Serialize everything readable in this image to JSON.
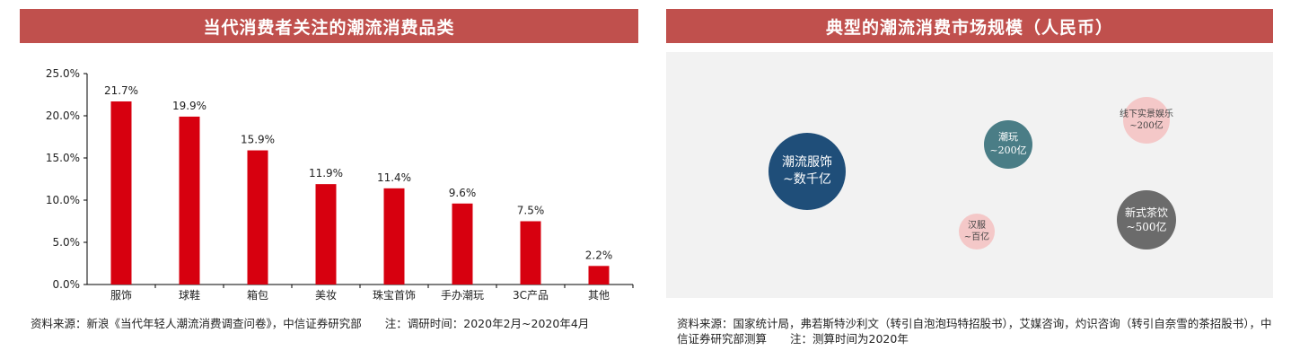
{
  "left_panel": {
    "title": "当代消费者关注的潮流消费品类",
    "source_text": "资料来源：新浪《当代年轻人潮流消费调查问卷》，中信证券研究部",
    "note_text": "注：调研时间：2020年2月~2020年4月"
  },
  "chart_data": {
    "type": "bar",
    "categories": [
      "服饰",
      "球鞋",
      "箱包",
      "美妆",
      "珠宝首饰",
      "手办潮玩",
      "3C产品",
      "其他"
    ],
    "values": [
      21.7,
      19.9,
      15.9,
      11.9,
      11.4,
      9.6,
      7.5,
      2.2
    ],
    "data_labels": [
      "21.7%",
      "19.9%",
      "15.9%",
      "11.9%",
      "11.4%",
      "9.6%",
      "7.5%",
      "2.2%"
    ],
    "y_ticks": [
      0,
      5,
      10,
      15,
      20,
      25
    ],
    "y_tick_labels": [
      "0.0%",
      "5.0%",
      "10.0%",
      "15.0%",
      "20.0%",
      "25.0%"
    ],
    "ylim": [
      0,
      25
    ],
    "grid": false,
    "bar_color": "#d7000f",
    "title": "当代消费者关注的潮流消费品类",
    "xlabel": "",
    "ylabel": ""
  },
  "right_panel": {
    "title": "典型的潮流消费市场规模（人民币）",
    "bubbles": {
      "clothing": {
        "name": "潮流服饰",
        "value": "~数千亿",
        "color": "#1f4e79"
      },
      "toys": {
        "name": "潮玩",
        "value": "~200亿",
        "color": "#4a7d86"
      },
      "entertainment": {
        "name": "线下实景娱乐",
        "value": "~200亿",
        "color": "#f4c8c8"
      },
      "tea": {
        "name": "新式茶饮",
        "value": "~500亿",
        "color": "#6b6b6b"
      },
      "hanfu": {
        "name": "汉服",
        "value": "~百亿",
        "color": "#f4c8c8"
      }
    },
    "source_text": "资料来源：国家统计局，弗若斯特沙利文（转引自泡泡玛特招股书），艾媒咨询，灼识咨询（转引自奈雪的茶招股书），中信证券研究部测算",
    "note_text": "注：测算时间为2020年"
  }
}
